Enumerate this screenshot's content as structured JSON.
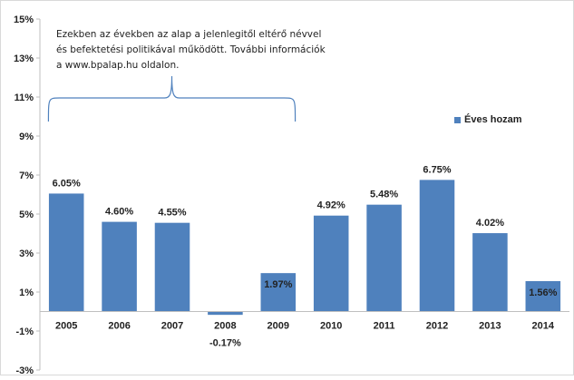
{
  "chart_data": {
    "type": "bar",
    "categories": [
      "2005",
      "2006",
      "2007",
      "2008",
      "2009",
      "2010",
      "2011",
      "2012",
      "2013",
      "2014"
    ],
    "series": [
      {
        "name": "Éves hozam",
        "values": [
          6.05,
          4.6,
          4.55,
          -0.17,
          1.97,
          4.92,
          5.48,
          6.75,
          4.02,
          1.56
        ]
      }
    ],
    "data_labels": [
      "6.05%",
      "4.60%",
      "4.55%",
      "-0.17%",
      "1.97%",
      "4.92%",
      "5.48%",
      "6.75%",
      "4.02%",
      "1.56%"
    ],
    "y_ticks": [
      -3,
      -1,
      1,
      3,
      5,
      7,
      9,
      11,
      13,
      15
    ],
    "y_tick_labels": [
      "-3%",
      "-1%",
      "1%",
      "3%",
      "5%",
      "7%",
      "9%",
      "11%",
      "13%",
      "15%"
    ],
    "ylim": [
      -3,
      15
    ],
    "grid": false,
    "legend_position": "right",
    "annotation": "Ezekben az években az alap a jelenlegitől eltérő névvel és befektetési politikával működött. További információk a www.bpalap.hu oldalon.",
    "bracket_categories": [
      "2005",
      "2009"
    ],
    "bar_color": "#4f81bd",
    "bracket_color": "#4f81bd"
  }
}
